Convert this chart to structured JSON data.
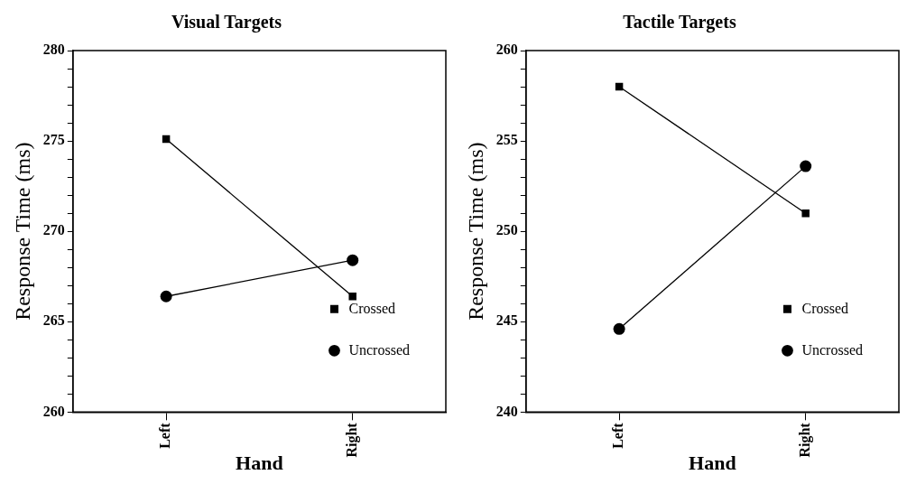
{
  "chart_data": [
    {
      "type": "line",
      "title": "Visual Targets",
      "xlabel": "Hand",
      "ylabel": "Response Time (ms)",
      "categories": [
        "Left",
        "Right"
      ],
      "series": [
        {
          "name": "Crossed",
          "color": "#000000",
          "marker": "square",
          "values": [
            275.1,
            266.4
          ]
        },
        {
          "name": "Uncrossed",
          "color": "#000000",
          "marker": "circle",
          "values": [
            266.4,
            268.4
          ]
        }
      ],
      "ylim": [
        260,
        280
      ],
      "yticks": [
        260,
        {
          "value": 261,
          "label": null
        },
        {
          "value": 262,
          "label": null
        },
        {
          "value": 263,
          "label": null
        },
        {
          "value": 264,
          "label": null
        },
        265,
        {
          "value": 266,
          "label": null
        },
        {
          "value": 267,
          "label": null
        },
        {
          "value": 268,
          "label": null
        },
        {
          "value": 269,
          "label": null
        },
        270,
        {
          "value": 271,
          "label": null
        },
        {
          "value": 272,
          "label": null
        },
        {
          "value": 273,
          "label": null
        },
        {
          "value": 274,
          "label": null
        },
        275,
        {
          "value": 276,
          "label": null
        },
        {
          "value": 277,
          "label": null
        },
        {
          "value": 278,
          "label": null
        },
        {
          "value": 279,
          "label": null
        },
        280
      ],
      "grid": false,
      "legend": "bottom right",
      "line_style": "solid"
    },
    {
      "type": "line",
      "title": "Tactile Targets",
      "xlabel": "Hand",
      "ylabel": "Response Time (ms)",
      "categories": [
        "Left",
        "Right"
      ],
      "series": [
        {
          "name": "Crossed",
          "color": "#000000",
          "marker": "square",
          "values": [
            258.0,
            251.0
          ]
        },
        {
          "name": "Uncrossed",
          "color": "#000000",
          "marker": "circle",
          "values": [
            244.6,
            253.6
          ]
        }
      ],
      "ylim": [
        240,
        260
      ],
      "yticks": [
        240,
        {
          "value": 241,
          "label": null
        },
        {
          "value": 242,
          "label": null
        },
        {
          "value": 243,
          "label": null
        },
        {
          "value": 244,
          "label": null
        },
        245,
        {
          "value": 246,
          "label": null
        },
        {
          "value": 247,
          "label": null
        },
        {
          "value": 248,
          "label": null
        },
        {
          "value": 249,
          "label": null
        },
        250,
        {
          "value": 251,
          "label": null
        },
        {
          "value": 252,
          "label": null
        },
        {
          "value": 253,
          "label": null
        },
        {
          "value": 254,
          "label": null
        },
        255,
        {
          "value": 256,
          "label": null
        },
        {
          "value": 257,
          "label": null
        },
        {
          "value": 258,
          "label": null
        },
        {
          "value": 259,
          "label": null
        },
        260
      ],
      "grid": false,
      "legend": "bottom right",
      "line_style": "solid"
    }
  ]
}
